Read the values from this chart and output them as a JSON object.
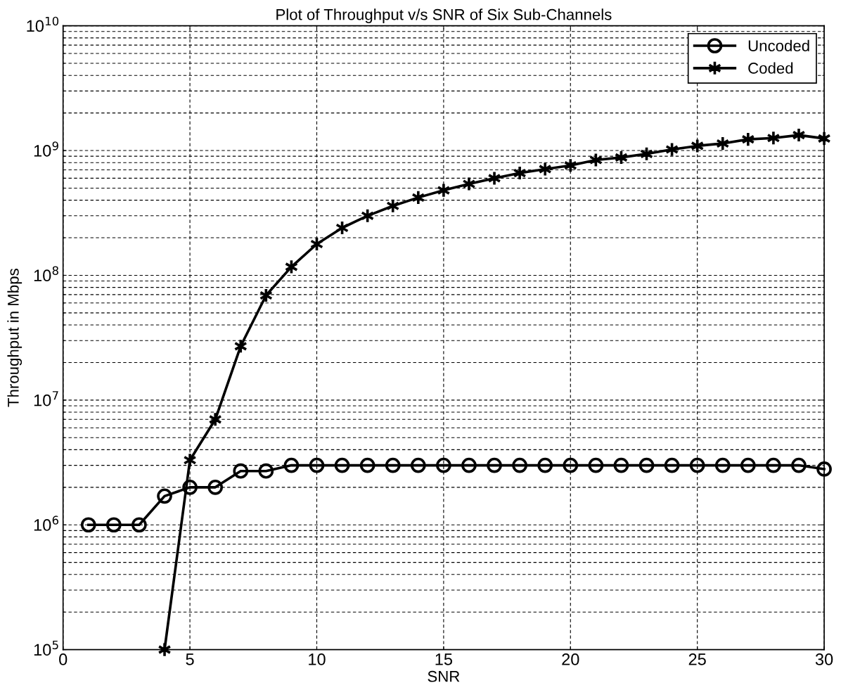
{
  "chart_data": {
    "type": "line",
    "title": "Plot of Throughput v/s SNR of Six Sub-Channels",
    "xlabel": "SNR",
    "ylabel": "Throughput in Mbps",
    "x": [
      1,
      2,
      3,
      4,
      5,
      6,
      7,
      8,
      9,
      10,
      11,
      12,
      13,
      14,
      15,
      16,
      17,
      18,
      19,
      20,
      21,
      22,
      23,
      24,
      25,
      26,
      27,
      28,
      29,
      30
    ],
    "series": [
      {
        "name": "Uncoded",
        "color": "#000000",
        "marker": "circle",
        "values": [
          1000000,
          1000000,
          1000000,
          1700000,
          2000000,
          2000000,
          2700000,
          2700000,
          3000000,
          3000000,
          3000000,
          3000000,
          3000000,
          3000000,
          3000000,
          3000000,
          3000000,
          3000000,
          3000000,
          3000000,
          3000000,
          3000000,
          3000000,
          3000000,
          3000000,
          3000000,
          3000000,
          3000000,
          3000000,
          2800000
        ]
      },
      {
        "name": "Coded",
        "color": "#000000",
        "marker": "cross",
        "values": [
          null,
          null,
          null,
          100000,
          3300000,
          7000000,
          27000000,
          69000000,
          117000000,
          178000000,
          240000000,
          300000000,
          360000000,
          420000000,
          480000000,
          540000000,
          600000000,
          660000000,
          710000000,
          760000000,
          840000000,
          880000000,
          940000000,
          1020000000,
          1090000000,
          1140000000,
          1230000000,
          1260000000,
          1330000000,
          1250000000
        ]
      }
    ],
    "log": "y",
    "xlim": [
      0,
      30
    ],
    "xticks": [
      0,
      5,
      10,
      15,
      20,
      25,
      30
    ],
    "ylim": [
      100000,
      10000000000
    ],
    "yticks": [
      {
        "value": 100000,
        "label": "10$^{5}$"
      },
      {
        "value": 1000000,
        "label": "10$^{6}$"
      },
      {
        "value": 10000000,
        "label": "10$^{7}$"
      },
      {
        "value": 100000000,
        "label": "10$^{8}$"
      },
      {
        "value": 1000000000,
        "label": "10$^{9}$"
      },
      {
        "value": 10000000000,
        "label": "10$^{10}$"
      }
    ],
    "grid": true,
    "legend": "top right",
    "line_style": "solid"
  }
}
